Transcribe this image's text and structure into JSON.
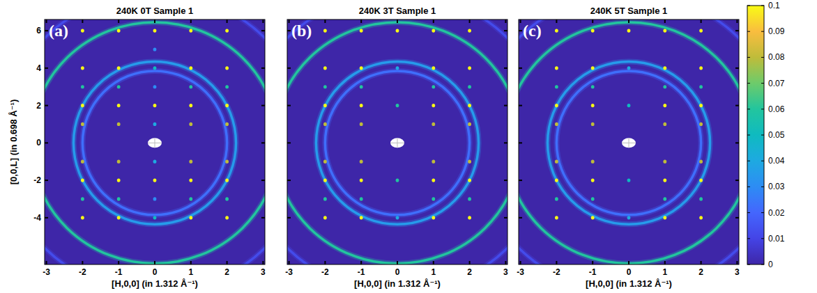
{
  "chart_data": [
    {
      "type": "heatmap",
      "title": "240K 0T Sample 1",
      "panel_label": "(a)",
      "x_label": "[H,0,0] (in 1.312 Å⁻¹)",
      "y_label": "[0,0,L] (in 0.698 Å⁻¹)",
      "xlim": [
        -3.05,
        3.05
      ],
      "ylim": [
        -6.5,
        6.6
      ],
      "xticks": [
        -3,
        -2,
        -1,
        0,
        1,
        2,
        3
      ],
      "yticks": [
        -4,
        -2,
        0,
        2,
        4,
        6
      ],
      "rings": {
        "h_radius": [
          2.0,
          2.25,
          3.43,
          4.27
        ],
        "l_radius": [
          3.85,
          4.35,
          6.45,
          8.02
        ],
        "intensity": [
          0.022,
          0.035,
          0.06,
          0.012
        ]
      },
      "peaks": {
        "h": [
          -2,
          -2,
          -2,
          -2,
          -2,
          -2,
          -2,
          -2,
          -2,
          -1,
          -1,
          -1,
          -1,
          -1,
          -1,
          -1,
          -1,
          -1,
          1,
          1,
          1,
          1,
          1,
          1,
          1,
          1,
          1,
          2,
          2,
          2,
          2,
          2,
          2,
          2,
          2,
          2,
          0,
          0,
          0,
          0,
          0,
          0,
          0,
          0,
          0,
          0
        ],
        "l": [
          -4,
          -3,
          -2,
          -1,
          1,
          2,
          3,
          4,
          6,
          -4,
          -3,
          -2,
          -1,
          1,
          2,
          3,
          4,
          6,
          -4,
          -3,
          -2,
          -1,
          1,
          2,
          3,
          4,
          6,
          -4,
          -3,
          -2,
          -1,
          1,
          2,
          3,
          4,
          6,
          -4,
          -3,
          -2,
          -1,
          1,
          2,
          3,
          4,
          5,
          6
        ],
        "intensity": [
          0.1,
          0.06,
          0.1,
          0.08,
          0.08,
          0.1,
          0.06,
          0.1,
          0.1,
          0.1,
          0.06,
          0.1,
          0.08,
          0.08,
          0.1,
          0.06,
          0.1,
          0.1,
          0.1,
          0.06,
          0.1,
          0.08,
          0.08,
          0.1,
          0.06,
          0.1,
          0.1,
          0.1,
          0.06,
          0.1,
          0.08,
          0.08,
          0.1,
          0.06,
          0.1,
          0.1,
          0.05,
          0.03,
          0.1,
          0.04,
          0.04,
          0.1,
          0.03,
          0.05,
          0.03,
          0.1
        ]
      }
    },
    {
      "type": "heatmap",
      "title": "240K 3T Sample 1",
      "panel_label": "(b)",
      "x_label": "[H,0,0] (in 1.312 Å⁻¹)",
      "tick_labels": "x",
      "xlim": [
        -3.05,
        3.05
      ],
      "ylim": [
        -6.5,
        6.6
      ],
      "xticks": [
        -3,
        -2,
        -1,
        0,
        1,
        2,
        3
      ],
      "yticks": [
        -4,
        -2,
        0,
        2,
        4,
        6
      ],
      "rings": {
        "h_radius": [
          2.0,
          2.25,
          3.43,
          4.27
        ],
        "l_radius": [
          3.85,
          4.35,
          6.45,
          8.02
        ],
        "intensity": [
          0.022,
          0.035,
          0.06,
          0.012
        ]
      },
      "peaks": {
        "h": [
          -2,
          -2,
          -2,
          -2,
          -2,
          -2,
          -2,
          -2,
          -2,
          -1,
          -1,
          -1,
          -1,
          -1,
          -1,
          -1,
          -1,
          -1,
          1,
          1,
          1,
          1,
          1,
          1,
          1,
          1,
          1,
          2,
          2,
          2,
          2,
          2,
          2,
          2,
          2,
          2,
          0,
          0,
          0,
          0,
          0
        ],
        "l": [
          -4,
          -3,
          -2,
          -1,
          1,
          2,
          3,
          4,
          6,
          -4,
          -3,
          -2,
          -1,
          1,
          2,
          3,
          4,
          6,
          -4,
          -3,
          -2,
          -1,
          1,
          2,
          3,
          4,
          6,
          -4,
          -3,
          -2,
          -1,
          1,
          2,
          3,
          4,
          6,
          -4,
          -2,
          2,
          4,
          6
        ],
        "intensity": [
          0.1,
          0.06,
          0.1,
          0.08,
          0.08,
          0.1,
          0.06,
          0.1,
          0.1,
          0.1,
          0.06,
          0.1,
          0.08,
          0.08,
          0.1,
          0.06,
          0.1,
          0.1,
          0.1,
          0.06,
          0.1,
          0.08,
          0.08,
          0.1,
          0.06,
          0.1,
          0.1,
          0.1,
          0.06,
          0.1,
          0.08,
          0.08,
          0.1,
          0.06,
          0.1,
          0.1,
          0.04,
          0.06,
          0.06,
          0.04,
          0.1
        ]
      }
    },
    {
      "type": "heatmap",
      "title": "240K 5T Sample 1",
      "panel_label": "(c)",
      "x_label": "[H,0,0] (in 1.312 Å⁻¹)",
      "tick_labels": "x",
      "xlim": [
        -3.05,
        3.05
      ],
      "ylim": [
        -6.5,
        6.6
      ],
      "xticks": [
        -3,
        -2,
        -1,
        0,
        1,
        2,
        3
      ],
      "yticks": [
        -4,
        -2,
        0,
        2,
        4,
        6
      ],
      "rings": {
        "h_radius": [
          2.0,
          2.25,
          3.43,
          4.27
        ],
        "l_radius": [
          3.85,
          4.35,
          6.45,
          8.02
        ],
        "intensity": [
          0.022,
          0.035,
          0.06,
          0.012
        ]
      },
      "peaks": {
        "h": [
          -2,
          -2,
          -2,
          -2,
          -2,
          -2,
          -2,
          -2,
          -2,
          -1,
          -1,
          -1,
          -1,
          -1,
          -1,
          -1,
          -1,
          -1,
          1,
          1,
          1,
          1,
          1,
          1,
          1,
          1,
          1,
          2,
          2,
          2,
          2,
          2,
          2,
          2,
          2,
          2,
          0,
          0,
          0,
          0,
          0
        ],
        "l": [
          -4,
          -3,
          -2,
          -1,
          1,
          2,
          3,
          4,
          6,
          -4,
          -3,
          -2,
          -1,
          1,
          2,
          3,
          4,
          6,
          -4,
          -3,
          -2,
          -1,
          1,
          2,
          3,
          4,
          6,
          -4,
          -3,
          -2,
          -1,
          1,
          2,
          3,
          4,
          6,
          -4,
          -2,
          2,
          4,
          6
        ],
        "intensity": [
          0.1,
          0.06,
          0.1,
          0.08,
          0.08,
          0.1,
          0.06,
          0.1,
          0.1,
          0.1,
          0.06,
          0.1,
          0.08,
          0.08,
          0.1,
          0.06,
          0.1,
          0.1,
          0.1,
          0.06,
          0.1,
          0.08,
          0.08,
          0.1,
          0.06,
          0.1,
          0.1,
          0.1,
          0.06,
          0.1,
          0.08,
          0.08,
          0.1,
          0.06,
          0.1,
          0.1,
          0.04,
          0.05,
          0.05,
          0.04,
          0.1
        ]
      }
    }
  ],
  "colorbar": {
    "range": [
      0,
      0.1
    ],
    "ticks": [
      0,
      0.01,
      0.02,
      0.03,
      0.04,
      0.05,
      0.06,
      0.07,
      0.08,
      0.09,
      0.1
    ]
  }
}
